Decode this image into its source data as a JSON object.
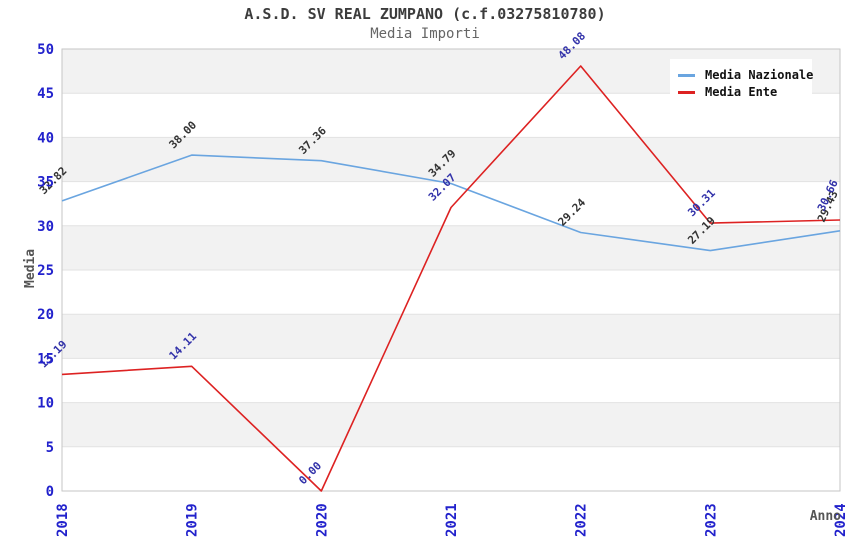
{
  "header": {
    "title": "A.S.D. SV REAL ZUMPANO (c.f.03275810780)",
    "subtitle": "Media Importi"
  },
  "legend": {
    "items": [
      {
        "label": "Media Nazionale",
        "color": "#6aa5e0"
      },
      {
        "label": "Media Ente",
        "color": "#dd2222"
      }
    ]
  },
  "axes": {
    "x_label": "Anno",
    "y_label": "Media",
    "y_ticks": [
      0,
      5,
      10,
      15,
      20,
      25,
      30,
      35,
      40,
      45,
      50
    ],
    "x_ticks": [
      "2018",
      "2019",
      "2020",
      "2021",
      "2022",
      "2023",
      "2024"
    ]
  },
  "chart_data": {
    "type": "line",
    "title": "A.S.D. SV REAL ZUMPANO (c.f.03275810780)",
    "subtitle": "Media Importi",
    "xlabel": "Anno",
    "ylabel": "Media",
    "x": [
      "2018",
      "2019",
      "2020",
      "2021",
      "2022",
      "2023",
      "2024"
    ],
    "series": [
      {
        "name": "Media Nazionale",
        "color": "#6aa5e0",
        "label_color": "#333333",
        "values": [
          32.82,
          38.0,
          37.36,
          34.79,
          29.24,
          27.19,
          29.43
        ]
      },
      {
        "name": "Media Ente",
        "color": "#dd2222",
        "label_color": "#3333aa",
        "values": [
          13.19,
          14.11,
          0.0,
          32.07,
          48.08,
          30.31,
          30.66
        ]
      }
    ],
    "ylim": [
      0,
      50
    ],
    "ytick_step": 5,
    "grid": true,
    "legend_position": "top-right",
    "band_color": "#f2f2f2",
    "grid_color": "#e2e2e2",
    "border_color": "#c6c6c6",
    "tick_color": "#2222cc"
  },
  "colors": {
    "title": "#3c3c3c",
    "subtitle": "#666666",
    "axis_label": "#555555",
    "tick_label": "#2222cc"
  }
}
